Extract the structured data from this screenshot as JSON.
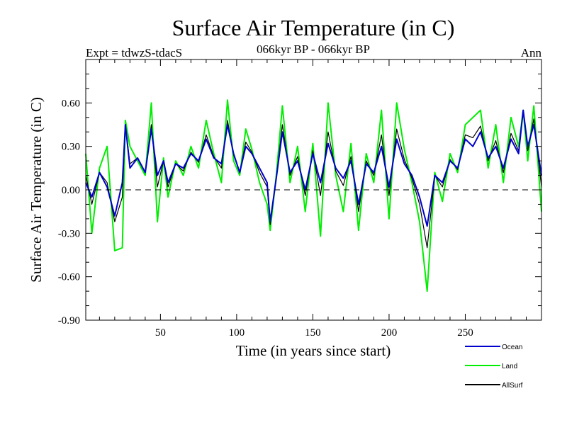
{
  "chart_data": {
    "type": "line",
    "title": "Surface Air Temperature (in C)",
    "subtitle": "066kyr BP - 066kyr BP",
    "experiment": "Expt = tdwzS-tdacS",
    "period": "Ann",
    "xlabel": "Time (in years since start)",
    "ylabel": "Surface Air Temperature (in C)",
    "xlim": [
      1,
      300
    ],
    "ylim": [
      -0.9,
      0.9
    ],
    "xticks": [
      50,
      100,
      150,
      200,
      250
    ],
    "yticks": [
      -0.9,
      -0.6,
      -0.3,
      0.0,
      0.3,
      0.6
    ],
    "ytick_labels": [
      "-0.90",
      "-0.60",
      "-0.30",
      "0.00",
      "0.30",
      "0.60"
    ],
    "reference_line": 0.0,
    "legend_position": "bottom-right",
    "x": [
      1,
      5,
      10,
      15,
      20,
      25,
      27,
      30,
      35,
      40,
      44,
      48,
      52,
      55,
      60,
      65,
      70,
      75,
      80,
      85,
      90,
      94,
      98,
      102,
      106,
      110,
      115,
      120,
      122,
      126,
      130,
      135,
      140,
      145,
      150,
      155,
      160,
      165,
      170,
      175,
      180,
      185,
      190,
      195,
      200,
      205,
      210,
      215,
      220,
      225,
      230,
      235,
      240,
      245,
      250,
      255,
      260,
      265,
      270,
      275,
      280,
      285,
      288,
      291,
      295,
      300
    ],
    "series": [
      {
        "name": "Ocean",
        "color": "#0000cc",
        "values": [
          0.05,
          -0.05,
          0.12,
          0.02,
          -0.18,
          0.05,
          0.45,
          0.15,
          0.22,
          0.12,
          0.42,
          0.1,
          0.2,
          0.05,
          0.18,
          0.15,
          0.25,
          0.2,
          0.35,
          0.22,
          0.18,
          0.45,
          0.25,
          0.12,
          0.3,
          0.25,
          0.15,
          0.05,
          -0.22,
          0.08,
          0.4,
          0.12,
          0.2,
          0.0,
          0.25,
          0.05,
          0.32,
          0.15,
          0.08,
          0.2,
          -0.1,
          0.18,
          0.12,
          0.3,
          0.02,
          0.35,
          0.18,
          0.1,
          -0.05,
          -0.25,
          0.1,
          0.05,
          0.2,
          0.15,
          0.35,
          0.3,
          0.4,
          0.22,
          0.3,
          0.15,
          0.35,
          0.25,
          0.55,
          0.3,
          0.45,
          0.1
        ]
      },
      {
        "name": "Land",
        "color": "#00ee00",
        "values": [
          0.25,
          -0.3,
          0.15,
          0.3,
          -0.42,
          -0.4,
          0.48,
          0.3,
          0.2,
          0.1,
          0.6,
          -0.22,
          0.22,
          -0.05,
          0.2,
          0.1,
          0.3,
          0.15,
          0.48,
          0.25,
          0.05,
          0.62,
          0.2,
          0.1,
          0.42,
          0.28,
          0.05,
          -0.1,
          -0.28,
          0.1,
          0.58,
          0.05,
          0.3,
          -0.15,
          0.32,
          -0.32,
          0.6,
          0.1,
          -0.15,
          0.32,
          -0.28,
          0.25,
          0.05,
          0.55,
          -0.2,
          0.6,
          0.28,
          0.05,
          -0.22,
          -0.7,
          0.12,
          -0.08,
          0.25,
          0.12,
          0.45,
          0.5,
          0.55,
          0.15,
          0.45,
          0.05,
          0.5,
          0.3,
          0.55,
          0.2,
          0.58,
          -0.15
        ]
      },
      {
        "name": "AllSurf",
        "color": "#000000",
        "values": [
          0.1,
          -0.1,
          0.12,
          0.05,
          -0.22,
          -0.05,
          0.45,
          0.18,
          0.22,
          0.12,
          0.45,
          0.02,
          0.2,
          0.02,
          0.18,
          0.13,
          0.26,
          0.19,
          0.38,
          0.23,
          0.15,
          0.48,
          0.24,
          0.12,
          0.33,
          0.26,
          0.12,
          0.02,
          -0.24,
          0.08,
          0.45,
          0.1,
          0.23,
          -0.04,
          0.27,
          -0.04,
          0.4,
          0.13,
          0.03,
          0.23,
          -0.15,
          0.2,
          0.1,
          0.38,
          -0.04,
          0.42,
          0.21,
          0.08,
          -0.1,
          -0.4,
          0.1,
          0.02,
          0.21,
          0.14,
          0.38,
          0.36,
          0.44,
          0.2,
          0.34,
          0.12,
          0.39,
          0.27,
          0.55,
          0.27,
          0.49,
          0.02
        ]
      }
    ]
  }
}
